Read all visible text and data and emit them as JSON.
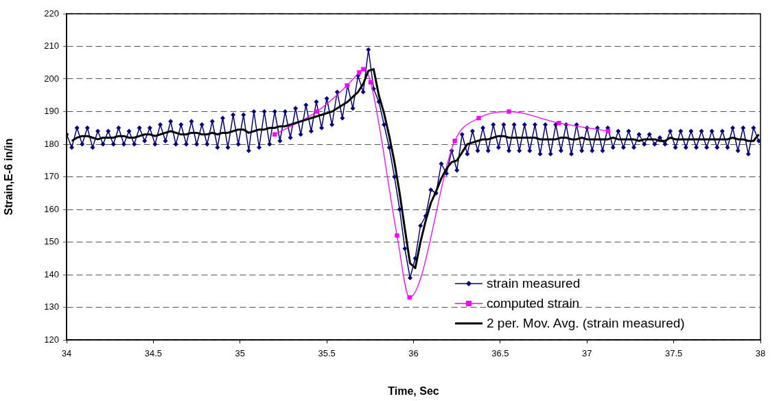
{
  "chart_data": {
    "type": "line",
    "xlabel": "Time, Sec",
    "ylabel": "Strain,E-6 in/in",
    "xlim": [
      34,
      38
    ],
    "xticks": [
      34,
      34.5,
      35,
      35.5,
      36,
      36.5,
      37,
      37.5,
      38
    ],
    "ylim": [
      120,
      220
    ],
    "yticks": [
      120,
      130,
      140,
      150,
      160,
      170,
      180,
      190,
      200,
      210,
      220
    ],
    "grid": "y",
    "legend": "bottom right",
    "line_style": "solid",
    "series": [
      {
        "name": "strain measured",
        "color": "#000080",
        "marker": "diamond",
        "x": [
          34,
          34.03,
          34.06,
          34.09,
          34.12,
          34.15,
          34.18,
          34.21,
          34.24,
          34.27,
          34.3,
          34.33,
          34.36,
          34.39,
          34.42,
          34.45,
          34.48,
          34.51,
          34.54,
          34.57,
          34.6,
          34.63,
          34.66,
          34.69,
          34.72,
          34.75,
          34.78,
          34.81,
          34.84,
          34.87,
          34.9,
          34.93,
          34.96,
          34.99,
          35.02,
          35.05,
          35.08,
          35.11,
          35.14,
          35.17,
          35.2,
          35.23,
          35.26,
          35.29,
          35.32,
          35.35,
          35.38,
          35.41,
          35.44,
          35.47,
          35.5,
          35.53,
          35.56,
          35.59,
          35.62,
          35.65,
          35.68,
          35.71,
          35.74,
          35.77,
          35.8,
          35.83,
          35.86,
          35.89,
          35.92,
          35.95,
          35.98,
          36.01,
          36.04,
          36.07,
          36.1,
          36.13,
          36.16,
          36.19,
          36.22,
          36.25,
          36.28,
          36.31,
          36.34,
          36.37,
          36.4,
          36.43,
          36.46,
          36.49,
          36.52,
          36.55,
          36.58,
          36.61,
          36.64,
          36.67,
          36.7,
          36.73,
          36.76,
          36.79,
          36.82,
          36.85,
          36.88,
          36.91,
          36.94,
          36.97,
          37,
          37.03,
          37.06,
          37.09,
          37.12,
          37.15,
          37.18,
          37.21,
          37.24,
          37.27,
          37.3,
          37.33,
          37.36,
          37.39,
          37.42,
          37.45,
          37.48,
          37.51,
          37.54,
          37.57,
          37.6,
          37.63,
          37.66,
          37.69,
          37.72,
          37.75,
          37.78,
          37.81,
          37.84,
          37.87,
          37.9,
          37.93,
          37.96,
          37.99
        ],
        "values": [
          183,
          179,
          185,
          180,
          185,
          179,
          184,
          180,
          184,
          180,
          185,
          180,
          184,
          180,
          185,
          181,
          185,
          180,
          186,
          181,
          187,
          180,
          186,
          180,
          187,
          180,
          186,
          180,
          187,
          179,
          188,
          179,
          189,
          180,
          189,
          178,
          190,
          179,
          190,
          180,
          190,
          181,
          190,
          182,
          191,
          183,
          192,
          184,
          193,
          185,
          194,
          186,
          196,
          188,
          198,
          191,
          201,
          196,
          209,
          197,
          193,
          186,
          179,
          170,
          160,
          148,
          139,
          145,
          155,
          158,
          166,
          165,
          174,
          171,
          178,
          172,
          183,
          177,
          184,
          178,
          185,
          178,
          186,
          179,
          186,
          178,
          186,
          178,
          186,
          178,
          186,
          177,
          186,
          177,
          186,
          178,
          186,
          177,
          186,
          178,
          185,
          178,
          185,
          178,
          185,
          179,
          184,
          179,
          184,
          179,
          183,
          180,
          183,
          180,
          182,
          180,
          184,
          179,
          184,
          179,
          184,
          179,
          184,
          179,
          184,
          179,
          184,
          179,
          185,
          178,
          185,
          177,
          185,
          181
        ]
      },
      {
        "name": "computed strain",
        "color": "#ff00ff",
        "marker": "square",
        "x": [
          35.2,
          35.443,
          35.617,
          35.687,
          35.711,
          35.753,
          35.905,
          35.977,
          36.238,
          36.376,
          36.55,
          36.838,
          37.122
        ],
        "values": [
          183,
          190,
          198,
          202,
          203,
          199,
          152,
          133,
          181,
          188,
          190,
          186.5,
          184
        ]
      },
      {
        "name": "2 per. Mov. Avg. (strain measured)",
        "color": "#000000",
        "marker": "none",
        "x": [
          34.03,
          34.06,
          34.09,
          34.12,
          34.15,
          34.18,
          34.21,
          34.24,
          34.27,
          34.3,
          34.33,
          34.36,
          34.39,
          34.42,
          34.45,
          34.48,
          34.51,
          34.54,
          34.57,
          34.6,
          34.63,
          34.66,
          34.69,
          34.72,
          34.75,
          34.78,
          34.81,
          34.84,
          34.87,
          34.9,
          34.93,
          34.96,
          34.99,
          35.02,
          35.05,
          35.08,
          35.11,
          35.14,
          35.17,
          35.2,
          35.23,
          35.26,
          35.29,
          35.32,
          35.35,
          35.38,
          35.41,
          35.44,
          35.47,
          35.5,
          35.53,
          35.56,
          35.59,
          35.62,
          35.65,
          35.68,
          35.71,
          35.74,
          35.77,
          35.8,
          35.83,
          35.86,
          35.89,
          35.92,
          35.95,
          35.98,
          36.01,
          36.04,
          36.07,
          36.1,
          36.13,
          36.16,
          36.19,
          36.22,
          36.25,
          36.28,
          36.31,
          36.34,
          36.37,
          36.4,
          36.43,
          36.46,
          36.49,
          36.52,
          36.55,
          36.58,
          36.61,
          36.64,
          36.67,
          36.7,
          36.73,
          36.76,
          36.79,
          36.82,
          36.85,
          36.88,
          36.91,
          36.94,
          36.97,
          37,
          37.03,
          37.06,
          37.09,
          37.12,
          37.15,
          37.18,
          37.21,
          37.24,
          37.27,
          37.3,
          37.33,
          37.36,
          37.39,
          37.42,
          37.45,
          37.48,
          37.51,
          37.54,
          37.57,
          37.6,
          37.63,
          37.66,
          37.69,
          37.72,
          37.75,
          37.78,
          37.81,
          37.84,
          37.87,
          37.9,
          37.93,
          37.96,
          37.99
        ],
        "values": [
          181,
          182,
          182.5,
          182.5,
          182,
          181.5,
          182,
          182,
          182,
          182.5,
          182.5,
          182,
          182,
          182.5,
          183,
          183,
          182.5,
          183,
          183.5,
          184,
          183.5,
          183,
          183,
          183.5,
          183.5,
          183,
          183,
          183.5,
          183,
          183.5,
          183.5,
          184,
          184.5,
          184.5,
          183.5,
          184,
          184.5,
          184.5,
          185,
          185,
          185.5,
          185.5,
          186,
          186.5,
          187,
          187.5,
          188,
          188.5,
          189,
          189.5,
          190,
          191,
          192,
          193,
          194.5,
          196,
          198.5,
          202.5,
          203,
          195,
          189.5,
          182.5,
          174.5,
          165,
          154,
          143.5,
          142,
          150,
          156.5,
          162,
          165.5,
          169.5,
          172.5,
          174.5,
          175,
          177.5,
          180,
          180.5,
          181,
          181.5,
          181.5,
          182,
          182.5,
          182.5,
          182,
          182,
          182,
          182,
          182,
          182,
          181.5,
          181.5,
          181.5,
          181.5,
          182,
          182,
          181.5,
          181.5,
          182,
          181.5,
          181.5,
          181.5,
          181.5,
          181.5,
          182,
          181.5,
          181.5,
          181.5,
          181.5,
          181,
          181.5,
          181.5,
          181.5,
          181,
          181,
          182,
          181.5,
          181.5,
          181.5,
          181.5,
          181.5,
          181.5,
          181.5,
          181.5,
          181.5,
          181.5,
          181.5,
          182,
          181.5,
          181.5,
          181,
          181,
          183
        ]
      }
    ]
  }
}
